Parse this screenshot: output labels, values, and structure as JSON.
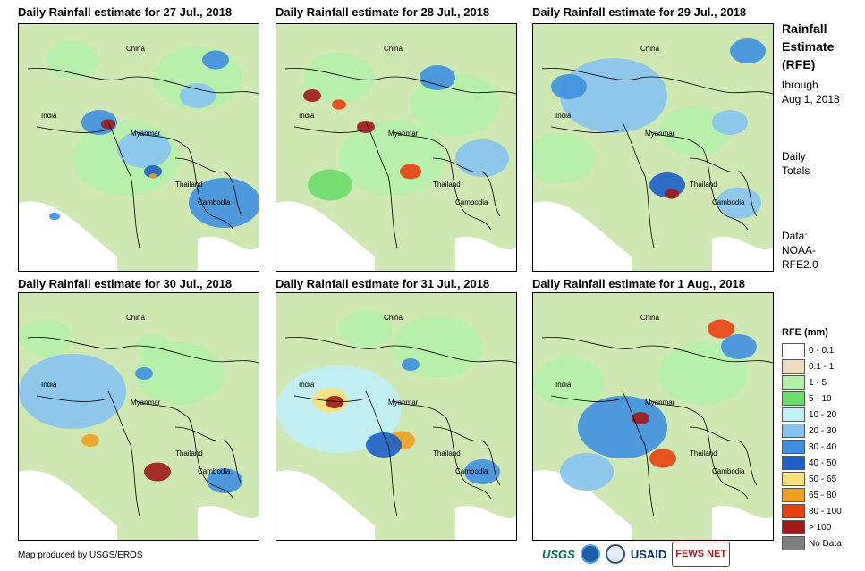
{
  "panels": [
    {
      "title": "Daily Rainfall estimate for 27 Jul., 2018"
    },
    {
      "title": "Daily Rainfall estimate for 28 Jul., 2018"
    },
    {
      "title": "Daily Rainfall estimate for 29 Jul., 2018"
    },
    {
      "title": "Daily Rainfall estimate for 30 Jul., 2018"
    },
    {
      "title": "Daily Rainfall estimate for 31 Jul., 2018"
    },
    {
      "title": "Daily Rainfall estimate for 1 Aug., 2018"
    }
  ],
  "places": {
    "china": "China",
    "india": "India",
    "myanmar": "Myanmar",
    "thailand": "Thailand",
    "cambodia": "Cambodia"
  },
  "sidebar": {
    "title_line1": "Rainfall",
    "title_line2": "Estimate",
    "title_line3": "(RFE)",
    "through": "through",
    "through_date": "Aug 1, 2018",
    "daily": "Daily",
    "totals": "Totals",
    "data_label": "Data:",
    "data_src1": "NOAA-",
    "data_src2": "RFE2.0"
  },
  "legend": {
    "title": "RFE (mm)",
    "items": [
      {
        "label": "0 - 0.1",
        "color": "#ffffff"
      },
      {
        "label": "0.1 - 1",
        "color": "#efdcc0"
      },
      {
        "label": "1 - 5",
        "color": "#b5f0a8"
      },
      {
        "label": "5 - 10",
        "color": "#6bdc6b"
      },
      {
        "label": "10 - 20",
        "color": "#bfeff7"
      },
      {
        "label": "20 - 30",
        "color": "#87c3f0"
      },
      {
        "label": "30 - 40",
        "color": "#3f8fe0"
      },
      {
        "label": "40 - 50",
        "color": "#1c5fc7"
      },
      {
        "label": "50 - 65",
        "color": "#f7e07a"
      },
      {
        "label": "65 - 80",
        "color": "#f0a020"
      },
      {
        "label": "80 - 100",
        "color": "#e84010"
      },
      {
        "label": "> 100",
        "color": "#a01818"
      },
      {
        "label": "No Data",
        "color": "#808080"
      }
    ]
  },
  "credit": "Map produced by USGS/EROS",
  "logos": {
    "usgs": "USGS",
    "usaid": "USAID",
    "fews": "FEWS NET"
  }
}
